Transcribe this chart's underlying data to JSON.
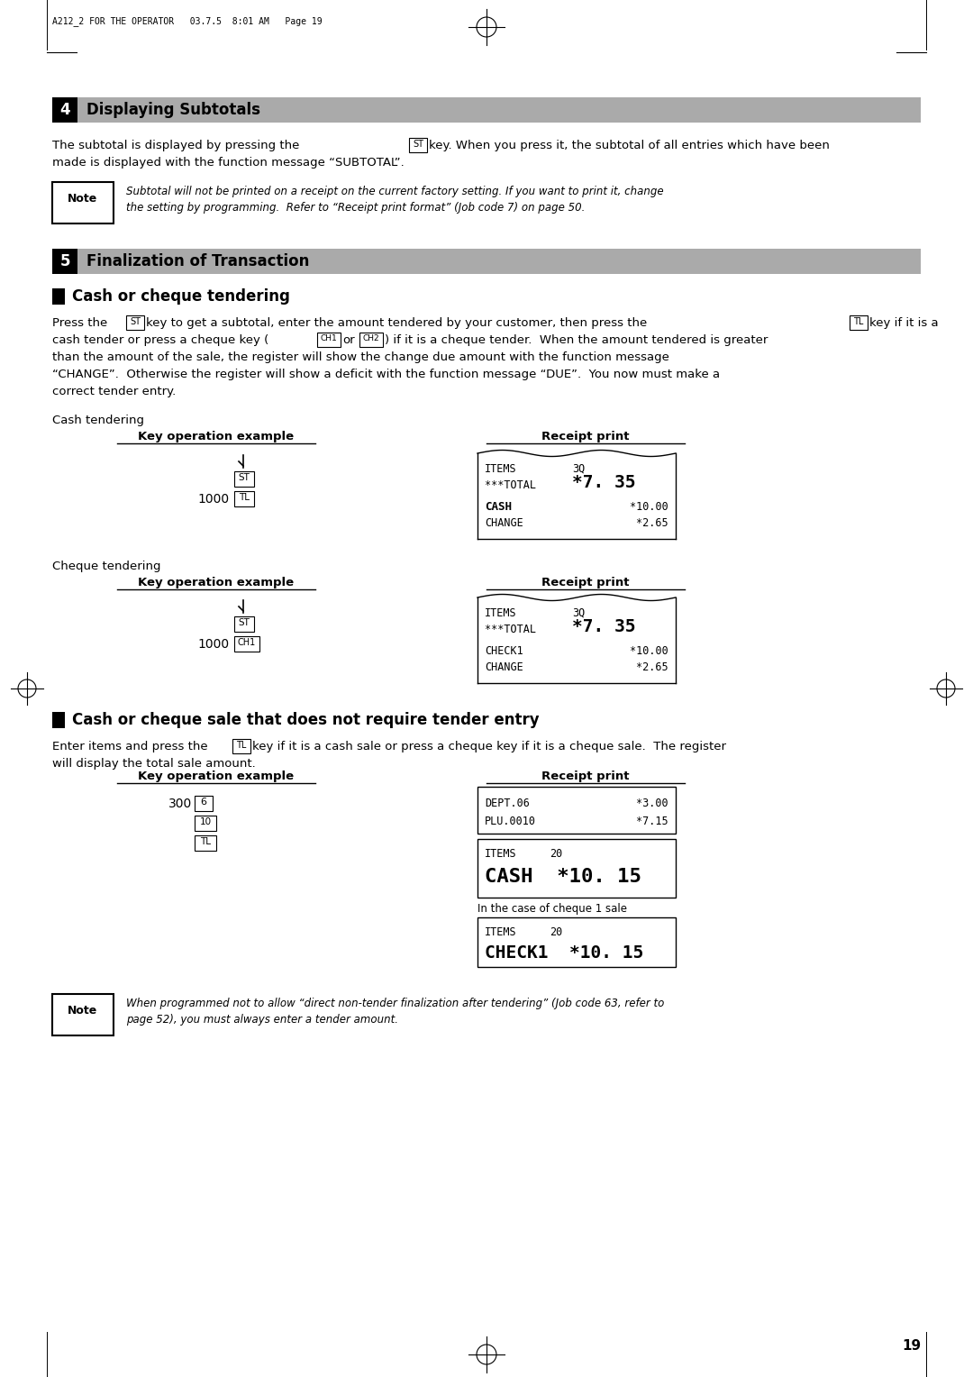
{
  "page_header": "A212_2 FOR THE OPERATOR   03.7.5  8:01 AM   Page 19",
  "section4_number": "4",
  "section4_title": "Displaying Subtotals",
  "section4_body1": "The subtotal is displayed by pressing the",
  "section4_body1b": "key. When you press it, the subtotal of all entries which have been",
  "section4_body2": "made is displayed with the function message “SUBTOTAL”.",
  "note1_line1": "Subtotal will not be printed on a receipt on the current factory setting. If you want to print it, change",
  "note1_line2": "the setting by programming.  Refer to “Receipt print format” (Job code 7) on page 50.",
  "section5_number": "5",
  "section5_title": "Finalization of Transaction",
  "subsec1_title": "Cash or cheque tendering",
  "body1_l1": "Press the",
  "body1_l1b": "key to get a subtotal, enter the amount tendered by your customer, then press the",
  "body1_l1c": "key if it is a",
  "body1_l2": "cash tender or press a cheque key (",
  "body1_l2b": "or",
  "body1_l2c": ") if it is a cheque tender.  When the amount tendered is greater",
  "body1_l3": "than the amount of the sale, the register will show the change due amount with the function message",
  "body1_l4": "“CHANGE”.  Otherwise the register will show a deficit with the function message “DUE”.  You now must make a",
  "body1_l5": "correct tender entry.",
  "cash_label": "Cash tendering",
  "ko_label": "Key operation example",
  "rp_label": "Receipt print",
  "cheque_label": "Cheque tendering",
  "subsec2_title": "Cash or cheque sale that does not require tender entry",
  "body2_l1": "Enter items and press the",
  "body2_l1b": "key if it is a cash sale or press a cheque key if it is a cheque sale.  The register",
  "body2_l2": "will display the total sale amount.",
  "cheque1_label": "In the case of cheque 1 sale",
  "note2_line1": "When programmed not to allow “direct non-tender finalization after tendering” (Job code 63, refer to",
  "note2_line2": "page 52), you must always enter a tender amount.",
  "page_number": "19",
  "bar_gray": "#aaaaaa",
  "bar_dark_gray": "#888888",
  "black": "#000000",
  "white": "#ffffff",
  "bg": "#ffffff"
}
